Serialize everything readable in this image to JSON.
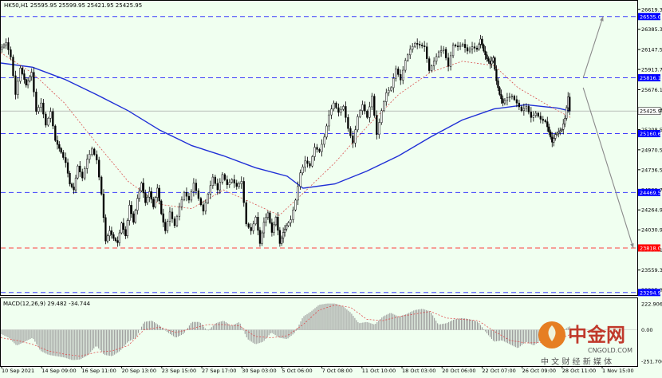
{
  "chart_data": [
    {
      "type": "candlestick",
      "symbol_line": "HK50,H1  25595.95 25599.95 25421.95 25425.95",
      "price_ticks": [
        "26619.30",
        "26385.30",
        "26147.50",
        "25913.70",
        "25676.10",
        "25442.30",
        "25208.50",
        "24970.50",
        "24736.50",
        "24502.70",
        "24264.90",
        "24030.90",
        "23797.10",
        "23559.30",
        "23325.30"
      ],
      "ylim": [
        23265,
        26720
      ],
      "levels": [
        {
          "price": 26535.0,
          "label": "26535.00",
          "color": "#0000ff",
          "style": "dashed"
        },
        {
          "price": 25816.2,
          "label": "25816.19",
          "color": "#0000ff",
          "style": "dashed"
        },
        {
          "price": 25160.6,
          "label": "25160.63",
          "color": "#0000ff",
          "style": "dashed"
        },
        {
          "price": 24469.6,
          "label": "24469.58",
          "color": "#0000ff",
          "style": "dashed"
        },
        {
          "price": 23818.0,
          "label": "23818.00",
          "color": "#ff0000",
          "style": "dashed"
        },
        {
          "price": 23294.97,
          "label": "23294.97",
          "color": "#0000ff",
          "style": "dashed"
        }
      ],
      "current_price": {
        "price": 25425.95,
        "label": "25425.95"
      },
      "x_labels": [
        "10 Sep 2021",
        "14 Sep 09:00",
        "16 Sep 11:00",
        "20 Sep 13:00",
        "23 Sep 15:00",
        "27 Sep 17:00",
        "30 Sep 03:00",
        "5 Oct 06:00",
        "7 Oct 08:00",
        "11 Oct 10:00",
        "18 Oct 03:00",
        "20 Oct 06:00",
        "22 Oct 07:00",
        "26 Oct 09:00",
        "28 Oct 11:00",
        "1 Nov 15:00"
      ],
      "ma_long_path": [
        [
          0,
          25990
        ],
        [
          40,
          25940
        ],
        [
          80,
          25800
        ],
        [
          120,
          25620
        ],
        [
          160,
          25430
        ],
        [
          200,
          25200
        ],
        [
          240,
          25020
        ],
        [
          280,
          24900
        ],
        [
          320,
          24760
        ],
        [
          360,
          24660
        ],
        [
          380,
          24520
        ],
        [
          420,
          24570
        ],
        [
          460,
          24720
        ],
        [
          500,
          24900
        ],
        [
          540,
          25120
        ],
        [
          580,
          25320
        ],
        [
          620,
          25450
        ],
        [
          660,
          25500
        ],
        [
          700,
          25460
        ],
        [
          716,
          25425
        ]
      ],
      "ma_short_path": [
        [
          0,
          26110
        ],
        [
          40,
          25870
        ],
        [
          80,
          25520
        ],
        [
          120,
          25050
        ],
        [
          160,
          24600
        ],
        [
          200,
          24330
        ],
        [
          240,
          24280
        ],
        [
          280,
          24500
        ],
        [
          320,
          24330
        ],
        [
          350,
          24200
        ],
        [
          380,
          24460
        ],
        [
          420,
          24820
        ],
        [
          460,
          25240
        ],
        [
          500,
          25620
        ],
        [
          540,
          25880
        ],
        [
          580,
          26010
        ],
        [
          620,
          25960
        ],
        [
          650,
          25700
        ],
        [
          690,
          25480
        ],
        [
          716,
          25350
        ]
      ],
      "projection_arrows": [
        {
          "from": [
            732,
            25816
          ],
          "to": [
            757,
            26535
          ]
        },
        {
          "from": [
            732,
            25700
          ],
          "to": [
            795,
            23818
          ]
        }
      ],
      "price_path": [
        [
          0,
          26150
        ],
        [
          8,
          26230
        ],
        [
          14,
          26060
        ],
        [
          20,
          25620
        ],
        [
          26,
          25930
        ],
        [
          33,
          25730
        ],
        [
          40,
          25880
        ],
        [
          46,
          25420
        ],
        [
          52,
          25520
        ],
        [
          58,
          25260
        ],
        [
          64,
          25420
        ],
        [
          70,
          25080
        ],
        [
          77,
          24940
        ],
        [
          83,
          24820
        ],
        [
          88,
          24570
        ],
        [
          93,
          24500
        ],
        [
          98,
          24780
        ],
        [
          104,
          24640
        ],
        [
          110,
          24860
        ],
        [
          116,
          24980
        ],
        [
          122,
          24850
        ],
        [
          128,
          24450
        ],
        [
          133,
          23900
        ],
        [
          138,
          24020
        ],
        [
          143,
          23930
        ],
        [
          148,
          23880
        ],
        [
          153,
          24110
        ],
        [
          158,
          23960
        ],
        [
          163,
          24320
        ],
        [
          168,
          24120
        ],
        [
          173,
          24400
        ],
        [
          178,
          24580
        ],
        [
          183,
          24350
        ],
        [
          188,
          24480
        ],
        [
          193,
          24300
        ],
        [
          198,
          24520
        ],
        [
          203,
          24220
        ],
        [
          208,
          24020
        ],
        [
          214,
          24240
        ],
        [
          220,
          24080
        ],
        [
          226,
          24300
        ],
        [
          232,
          24470
        ],
        [
          238,
          24380
        ],
        [
          244,
          24580
        ],
        [
          250,
          24400
        ],
        [
          256,
          24250
        ],
        [
          262,
          24450
        ],
        [
          268,
          24650
        ],
        [
          274,
          24500
        ],
        [
          280,
          24680
        ],
        [
          286,
          24560
        ],
        [
          292,
          24620
        ],
        [
          298,
          24540
        ],
        [
          304,
          24600
        ],
        [
          310,
          24100
        ],
        [
          316,
          24020
        ],
        [
          322,
          24180
        ],
        [
          327,
          23870
        ],
        [
          332,
          24120
        ],
        [
          337,
          24230
        ],
        [
          342,
          24000
        ],
        [
          347,
          24180
        ],
        [
          352,
          23870
        ],
        [
          356,
          24000
        ],
        [
          360,
          24080
        ],
        [
          366,
          24150
        ],
        [
          372,
          24380
        ],
        [
          378,
          24700
        ],
        [
          384,
          24840
        ],
        [
          390,
          24780
        ],
        [
          396,
          25000
        ],
        [
          402,
          24950
        ],
        [
          408,
          25120
        ],
        [
          414,
          25380
        ],
        [
          420,
          25520
        ],
        [
          426,
          25410
        ],
        [
          432,
          25480
        ],
        [
          438,
          25220
        ],
        [
          444,
          25050
        ],
        [
          450,
          25360
        ],
        [
          456,
          25500
        ],
        [
          462,
          25350
        ],
        [
          468,
          25600
        ],
        [
          474,
          25150
        ],
        [
          480,
          25430
        ],
        [
          486,
          25640
        ],
        [
          492,
          25700
        ],
        [
          498,
          25920
        ],
        [
          504,
          25790
        ],
        [
          510,
          26020
        ],
        [
          516,
          26150
        ],
        [
          522,
          26220
        ],
        [
          528,
          26200
        ],
        [
          534,
          26180
        ],
        [
          540,
          25900
        ],
        [
          546,
          26010
        ],
        [
          552,
          26120
        ],
        [
          558,
          26150
        ],
        [
          564,
          25950
        ],
        [
          570,
          26200
        ],
        [
          576,
          26180
        ],
        [
          582,
          26210
        ],
        [
          588,
          26130
        ],
        [
          594,
          26180
        ],
        [
          600,
          26150
        ],
        [
          604,
          26270
        ],
        [
          608,
          26130
        ],
        [
          612,
          26040
        ],
        [
          616,
          25980
        ],
        [
          620,
          26050
        ],
        [
          624,
          25780
        ],
        [
          628,
          25620
        ],
        [
          632,
          25520
        ],
        [
          638,
          25580
        ],
        [
          644,
          25600
        ],
        [
          650,
          25520
        ],
        [
          656,
          25430
        ],
        [
          662,
          25480
        ],
        [
          668,
          25350
        ],
        [
          674,
          25400
        ],
        [
          680,
          25330
        ],
        [
          686,
          25300
        ],
        [
          690,
          25180
        ],
        [
          694,
          25060
        ],
        [
          698,
          25150
        ],
        [
          702,
          25180
        ],
        [
          706,
          25210
        ],
        [
          710,
          25340
        ],
        [
          714,
          25590
        ],
        [
          716,
          25426
        ]
      ],
      "macd": {
        "label": "MACD(12,26,9) 29.482 -34.744",
        "ticks": [
          "222.906",
          "0.00",
          "-251.706"
        ],
        "ylim": [
          -275,
          240
        ],
        "histogram": [
          [
            0,
            -30
          ],
          [
            10,
            -60
          ],
          [
            20,
            -120
          ],
          [
            30,
            -90
          ],
          [
            40,
            -60
          ],
          [
            50,
            -160
          ],
          [
            60,
            -190
          ],
          [
            70,
            -200
          ],
          [
            80,
            -210
          ],
          [
            90,
            -230
          ],
          [
            100,
            -225
          ],
          [
            110,
            -190
          ],
          [
            120,
            -120
          ],
          [
            130,
            -190
          ],
          [
            140,
            -200
          ],
          [
            150,
            -160
          ],
          [
            160,
            -90
          ],
          [
            170,
            -60
          ],
          [
            180,
            60
          ],
          [
            190,
            70
          ],
          [
            200,
            30
          ],
          [
            210,
            -20
          ],
          [
            220,
            -60
          ],
          [
            230,
            -30
          ],
          [
            240,
            60
          ],
          [
            250,
            60
          ],
          [
            260,
            -10
          ],
          [
            270,
            50
          ],
          [
            280,
            70
          ],
          [
            290,
            30
          ],
          [
            300,
            60
          ],
          [
            310,
            -70
          ],
          [
            320,
            -110
          ],
          [
            330,
            -90
          ],
          [
            340,
            -20
          ],
          [
            350,
            -60
          ],
          [
            360,
            -70
          ],
          [
            370,
            -20
          ],
          [
            380,
            100
          ],
          [
            390,
            140
          ],
          [
            400,
            190
          ],
          [
            410,
            200
          ],
          [
            420,
            200
          ],
          [
            430,
            180
          ],
          [
            440,
            130
          ],
          [
            450,
            50
          ],
          [
            460,
            60
          ],
          [
            470,
            40
          ],
          [
            480,
            100
          ],
          [
            490,
            130
          ],
          [
            500,
            100
          ],
          [
            510,
            120
          ],
          [
            520,
            150
          ],
          [
            530,
            160
          ],
          [
            540,
            140
          ],
          [
            550,
            40
          ],
          [
            560,
            50
          ],
          [
            570,
            80
          ],
          [
            580,
            90
          ],
          [
            590,
            80
          ],
          [
            600,
            60
          ],
          [
            610,
            -20
          ],
          [
            620,
            -90
          ],
          [
            630,
            -80
          ],
          [
            640,
            -110
          ],
          [
            650,
            -140
          ],
          [
            660,
            -90
          ],
          [
            670,
            -120
          ],
          [
            680,
            -70
          ],
          [
            690,
            -60
          ],
          [
            700,
            -40
          ],
          [
            710,
            10
          ],
          [
            716,
            29
          ]
        ],
        "signal": [
          [
            0,
            -60
          ],
          [
            20,
            -80
          ],
          [
            40,
            -110
          ],
          [
            60,
            -160
          ],
          [
            80,
            -185
          ],
          [
            100,
            -200
          ],
          [
            120,
            -170
          ],
          [
            140,
            -160
          ],
          [
            160,
            -120
          ],
          [
            180,
            0
          ],
          [
            200,
            20
          ],
          [
            220,
            -20
          ],
          [
            240,
            10
          ],
          [
            260,
            40
          ],
          [
            280,
            40
          ],
          [
            300,
            30
          ],
          [
            320,
            -50
          ],
          [
            340,
            -60
          ],
          [
            360,
            -45
          ],
          [
            380,
            40
          ],
          [
            400,
            150
          ],
          [
            420,
            190
          ],
          [
            440,
            170
          ],
          [
            460,
            80
          ],
          [
            480,
            70
          ],
          [
            500,
            100
          ],
          [
            520,
            120
          ],
          [
            540,
            140
          ],
          [
            560,
            90
          ],
          [
            580,
            80
          ],
          [
            600,
            70
          ],
          [
            620,
            -10
          ],
          [
            640,
            -80
          ],
          [
            660,
            -100
          ],
          [
            680,
            -95
          ],
          [
            700,
            -70
          ],
          [
            716,
            -35
          ]
        ]
      }
    }
  ],
  "watermark": {
    "brand": "中金网",
    "url": "CNGOLD.COM",
    "slogan": "中 文 财 经 新 媒 体"
  }
}
